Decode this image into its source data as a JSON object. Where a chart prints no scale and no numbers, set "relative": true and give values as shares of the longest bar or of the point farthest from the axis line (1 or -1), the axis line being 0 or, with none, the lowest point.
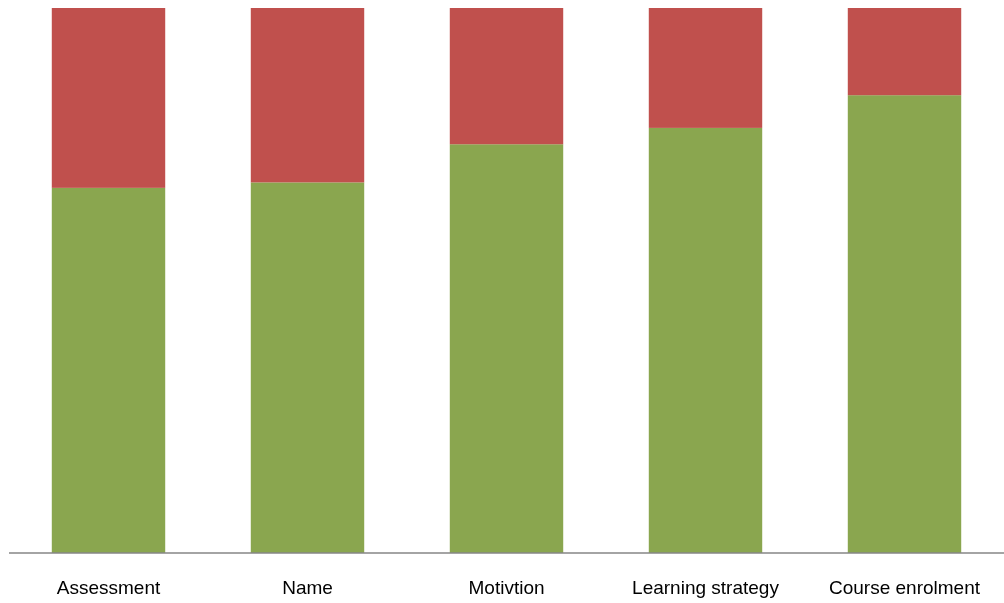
{
  "chart_data": {
    "type": "bar",
    "stacked": true,
    "relative": true,
    "categories": [
      "Assessment",
      "Name",
      "Motivtion",
      "Learning strategy",
      "Course enrolment"
    ],
    "series": [
      {
        "color": "#8aa64f",
        "values": [
          0.67,
          0.68,
          0.75,
          0.78,
          0.84
        ]
      },
      {
        "color": "#c0504d",
        "values": [
          0.33,
          0.32,
          0.25,
          0.22,
          0.16
        ]
      }
    ]
  }
}
